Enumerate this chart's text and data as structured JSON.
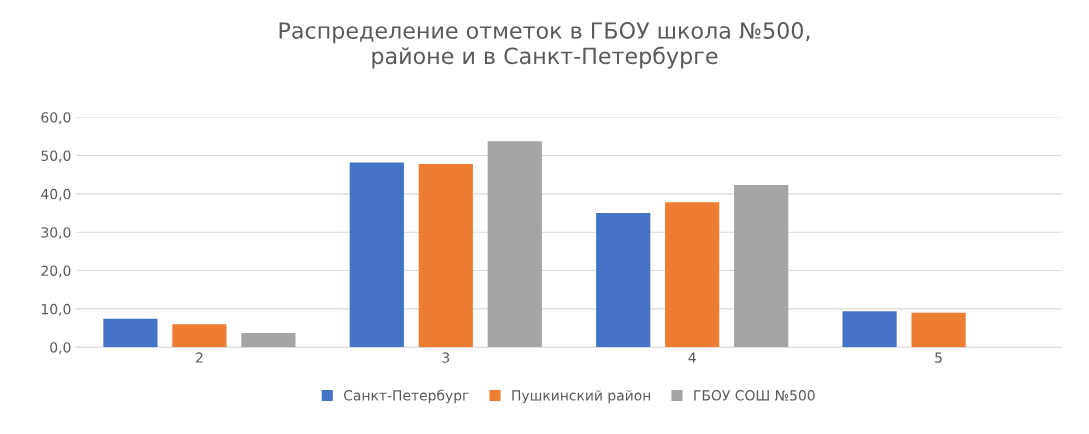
{
  "chart_data": {
    "type": "bar",
    "title": "Распределение отметок в ГБОУ школа №500,\nрайоне и в Санкт-Петербурге",
    "categories": [
      "2",
      "3",
      "4",
      "5"
    ],
    "series": [
      {
        "name": "Санкт-Петербург",
        "color": "#4472c4",
        "values": [
          7.4,
          48.2,
          35.0,
          9.4
        ]
      },
      {
        "name": "Пушкинский район",
        "color": "#ed7d31",
        "values": [
          6.0,
          47.8,
          37.8,
          9.0
        ]
      },
      {
        "name": "ГБОУ СОШ №500",
        "color": "#a5a5a5",
        "values": [
          3.7,
          53.7,
          42.3,
          null
        ]
      }
    ],
    "ylim": [
      0,
      60
    ],
    "yticks": [
      {
        "value": 0,
        "label": "0,0"
      },
      {
        "value": 10,
        "label": "10,0"
      },
      {
        "value": 20,
        "label": "20,0"
      },
      {
        "value": 30,
        "label": "30,0"
      },
      {
        "value": 40,
        "label": "40,0"
      },
      {
        "value": 50,
        "label": "50,0"
      },
      {
        "value": 60,
        "label": "60,0"
      }
    ],
    "grid": "y",
    "legend": "bottom"
  }
}
